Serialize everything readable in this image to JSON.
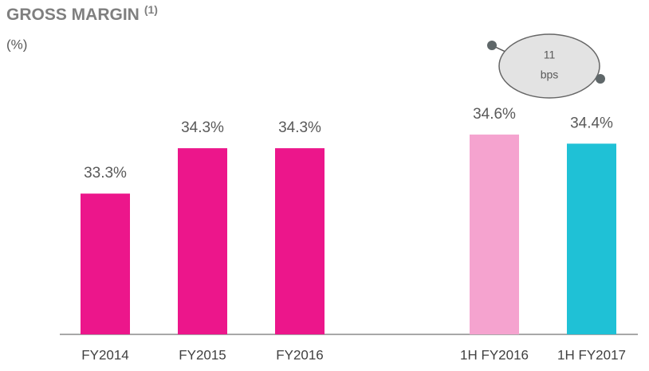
{
  "chart_data": {
    "type": "bar",
    "title": "GROSS MARGIN",
    "title_note": "(1)",
    "subtitle": "(%)",
    "categories": [
      "FY2014",
      "FY2015",
      "FY2016",
      "1H FY2016",
      "1H FY2017"
    ],
    "values": [
      33.3,
      34.3,
      34.3,
      34.6,
      34.4
    ],
    "value_labels": [
      "33.3%",
      "34.3%",
      "34.3%",
      "34.6%",
      "34.4%"
    ],
    "colors": [
      "#ec168b",
      "#ec168b",
      "#ec168b",
      "#f5a3cf",
      "#1fc1d6"
    ],
    "ylim": [
      30.2,
      35.6
    ],
    "annotation_lines": [
      "11",
      "bps"
    ]
  }
}
